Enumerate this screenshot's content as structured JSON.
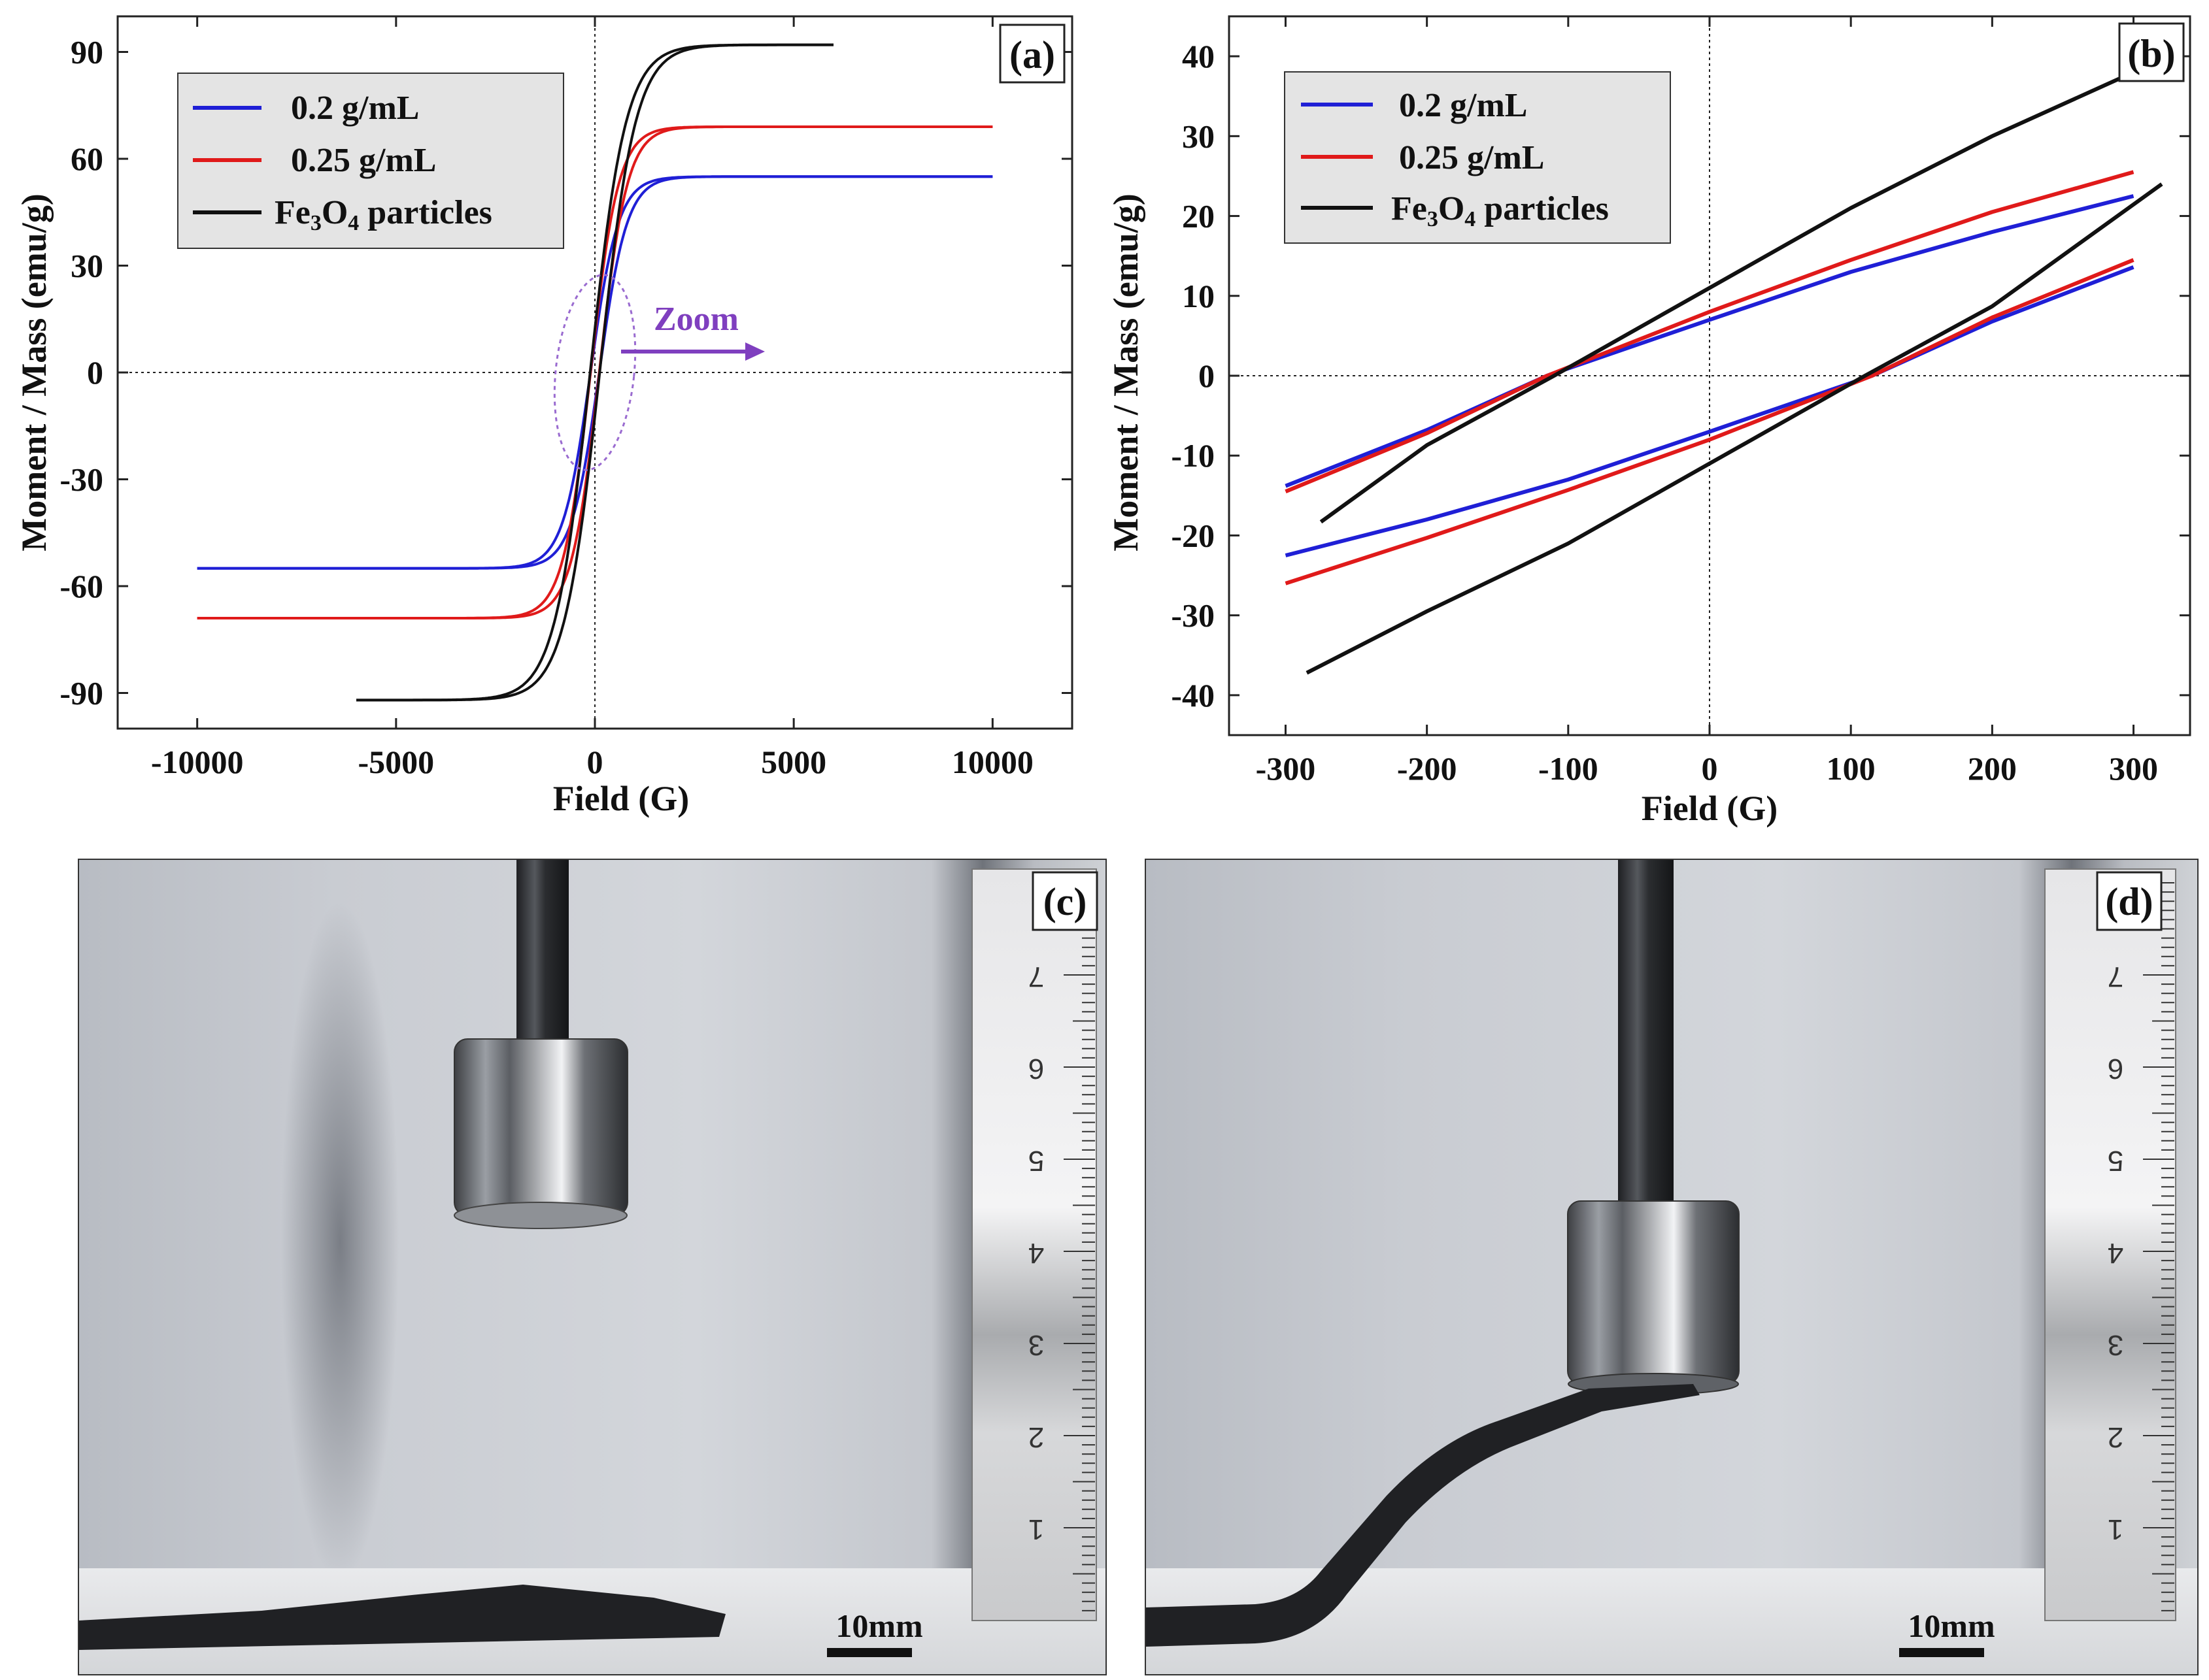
{
  "figure": {
    "panel_a": {
      "label": "(a)",
      "zoom_label": "Zoom",
      "legend": [
        {
          "label": "0.2 g/mL",
          "color": "#1f1fd6"
        },
        {
          "label": "0.25 g/mL",
          "color": "#e01a1a"
        },
        {
          "label": "Fe3O4 particles",
          "label_main": "Fe",
          "sub1": "3",
          "mid": "O",
          "sub2": "4",
          "tail": " particles",
          "color": "#111111"
        }
      ]
    },
    "panel_b": {
      "label": "(b)",
      "legend": [
        {
          "label": "0.2 g/mL",
          "color": "#1f1fd6"
        },
        {
          "label": "0.25 g/mL",
          "color": "#e01a1a"
        },
        {
          "label": "Fe3O4 particles",
          "label_main": "Fe",
          "sub1": "3",
          "mid": "O",
          "sub2": "4",
          "tail": " particles",
          "color": "#111111"
        }
      ]
    },
    "panel_c": {
      "label": "(c)",
      "scale_bar": "10mm",
      "ruler_numbers": [
        "1",
        "2",
        "3",
        "4",
        "5",
        "6",
        "7"
      ]
    },
    "panel_d": {
      "label": "(d)",
      "scale_bar": "10mm",
      "ruler_numbers": [
        "1",
        "2",
        "3",
        "4",
        "5",
        "6",
        "7"
      ]
    }
  },
  "chart_data": [
    {
      "type": "line",
      "panel": "a",
      "title": "",
      "xlabel": "Field (G)",
      "ylabel": "Moment / Mass (emu/g)",
      "xlim": [
        -12000,
        12000
      ],
      "ylim": [
        -100,
        100
      ],
      "xticks": [
        "-10000",
        "-5000",
        "0",
        "5000",
        "10000"
      ],
      "xtick_values": [
        -10000,
        -5000,
        0,
        5000,
        10000
      ],
      "yticks": [
        "-90",
        "-60",
        "-30",
        "0",
        "30",
        "60",
        "90"
      ],
      "ytick_values": [
        -90,
        -60,
        -30,
        0,
        30,
        60,
        90
      ],
      "series": [
        {
          "name": "0.2 g/mL",
          "color": "#1f1fd6",
          "model": "tanh",
          "Ms": 55,
          "Hs": 700,
          "Hc": 110,
          "xmin": -10000,
          "xmax": 10000
        },
        {
          "name": "0.25 g/mL",
          "color": "#e01a1a",
          "model": "tanh",
          "Ms": 69,
          "Hs": 700,
          "Hc": 110,
          "xmin": -10000,
          "xmax": 10000
        },
        {
          "name": "Fe3O4 particles",
          "color": "#111111",
          "model": "tanh",
          "Ms": 92,
          "Hs": 900,
          "Hc": 120,
          "xmin": -6000,
          "xmax": 6000
        }
      ]
    },
    {
      "type": "line",
      "panel": "b",
      "title": "",
      "xlabel": "Field (G)",
      "ylabel": "Moment / Mass (emu/g)",
      "xlim": [
        -340,
        340
      ],
      "ylim": [
        -45,
        45
      ],
      "xticks": [
        "-300",
        "-200",
        "-100",
        "0",
        "100",
        "200",
        "300"
      ],
      "xtick_values": [
        -300,
        -200,
        -100,
        0,
        100,
        200,
        300
      ],
      "yticks": [
        "-40",
        "-30",
        "-20",
        "-10",
        "0",
        "10",
        "20",
        "30",
        "40"
      ],
      "ytick_values": [
        -40,
        -30,
        -20,
        -10,
        0,
        10,
        20,
        30,
        40
      ],
      "series": [
        {
          "name": "0.2 g/mL upper",
          "color": "#1f1fd6",
          "x": [
            -300,
            -200,
            -115,
            0,
            100,
            200,
            300
          ],
          "y": [
            -13.8,
            -6.8,
            0,
            7,
            13,
            18,
            22.5
          ]
        },
        {
          "name": "0.2 g/mL lower",
          "color": "#1f1fd6",
          "x": [
            -300,
            -200,
            -100,
            0,
            115,
            200,
            300
          ],
          "y": [
            -22.5,
            -18,
            -13,
            -7,
            0,
            6.8,
            13.6
          ]
        },
        {
          "name": "0.25 g/mL upper",
          "color": "#e01a1a",
          "x": [
            -300,
            -200,
            -115,
            0,
            100,
            200,
            300
          ],
          "y": [
            -14.5,
            -7.2,
            0,
            8,
            14.5,
            20.5,
            25.5
          ]
        },
        {
          "name": "0.25 g/mL lower",
          "color": "#e01a1a",
          "x": [
            -300,
            -200,
            -100,
            0,
            115,
            200,
            300
          ],
          "y": [
            -26,
            -20.3,
            -14.3,
            -8,
            0,
            7.3,
            14.5
          ]
        },
        {
          "name": "Fe3O4 particles upper",
          "color": "#111111",
          "x": [
            -275,
            -200,
            -110,
            0,
            100,
            200,
            300
          ],
          "y": [
            -18.3,
            -8.7,
            0,
            11,
            21,
            30,
            38
          ]
        },
        {
          "name": "Fe3O4 particles lower",
          "color": "#111111",
          "x": [
            -285,
            -200,
            -100,
            0,
            110,
            200,
            320
          ],
          "y": [
            -37.2,
            -29.5,
            -21,
            -11,
            0,
            8.7,
            24
          ]
        }
      ]
    }
  ]
}
